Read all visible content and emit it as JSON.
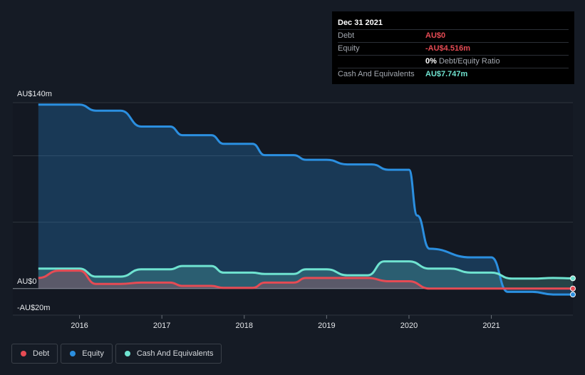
{
  "tooltip": {
    "date": "Dec 31 2021",
    "rows": [
      {
        "label": "Debt",
        "value": "AU$0"
      },
      {
        "label": "Equity",
        "value": "-AU$4.516m"
      },
      {
        "label": "",
        "value": "0%",
        "suffix": "Debt/Equity Ratio"
      },
      {
        "label": "Cash And Equivalents",
        "value": "AU$7.747m"
      }
    ]
  },
  "legend": {
    "debt": "Debt",
    "equity": "Equity",
    "cash": "Cash And Equivalents"
  },
  "colors": {
    "debt": "#e64b54",
    "equity": "#2b8fe0",
    "cash": "#6fe3d0",
    "background": "#151b25"
  },
  "chart_data": {
    "type": "line",
    "title": "",
    "xlabel": "",
    "ylabel": "",
    "currency_labels": [
      "AU$140m",
      "AU$0",
      "-AU$20m"
    ],
    "ylim": [
      -20,
      140
    ],
    "xlim": [
      2015.45,
      2021.99
    ],
    "x_ticks": [
      2016,
      2017,
      2018,
      2019,
      2020,
      2021
    ],
    "x_tick_labels": [
      "2016",
      "2017",
      "2018",
      "2019",
      "2020",
      "2021"
    ],
    "series": [
      {
        "name": "Equity",
        "key": "equity",
        "x": [
          2015.5,
          2016.0,
          2016.2,
          2016.5,
          2016.75,
          2017.1,
          2017.25,
          2017.6,
          2017.75,
          2018.1,
          2018.25,
          2018.6,
          2018.75,
          2019.0,
          2019.25,
          2019.55,
          2019.75,
          2020.0,
          2020.1,
          2020.25,
          2020.75,
          2021.0,
          2021.2,
          2021.5,
          2021.75,
          2021.99
        ],
        "values": [
          138.5,
          138.5,
          134.0,
          134.0,
          122.0,
          122.0,
          115.5,
          115.5,
          109.0,
          109.0,
          100.5,
          100.5,
          97.0,
          97.0,
          93.5,
          93.5,
          89.5,
          89.5,
          55.0,
          30.0,
          23.5,
          23.5,
          -2.5,
          -2.5,
          -4.5,
          -4.5
        ]
      },
      {
        "name": "Cash And Equivalents",
        "key": "cash",
        "x": [
          2015.5,
          2016.0,
          2016.2,
          2016.5,
          2016.75,
          2017.1,
          2017.25,
          2017.6,
          2017.75,
          2018.1,
          2018.25,
          2018.6,
          2018.75,
          2019.0,
          2019.25,
          2019.5,
          2019.7,
          2020.0,
          2020.25,
          2020.5,
          2020.75,
          2021.0,
          2021.25,
          2021.5,
          2021.75,
          2021.99
        ],
        "values": [
          15.0,
          15.0,
          9.0,
          9.0,
          14.5,
          14.5,
          17.0,
          17.0,
          12.0,
          12.0,
          11.0,
          11.0,
          14.5,
          14.5,
          10.0,
          10.0,
          20.5,
          20.5,
          15.0,
          15.0,
          12.0,
          12.0,
          7.5,
          7.5,
          8.0,
          7.7
        ]
      },
      {
        "name": "Debt",
        "key": "debt",
        "x": [
          2015.5,
          2015.75,
          2016.0,
          2016.2,
          2016.5,
          2016.75,
          2017.1,
          2017.25,
          2017.6,
          2017.75,
          2018.1,
          2018.25,
          2018.6,
          2018.75,
          2019.0,
          2019.25,
          2019.5,
          2019.75,
          2020.0,
          2020.25,
          2020.75,
          2021.0,
          2021.5,
          2021.99
        ],
        "values": [
          8.0,
          13.5,
          13.5,
          3.5,
          3.5,
          4.5,
          4.5,
          2.0,
          2.0,
          0.5,
          0.5,
          4.5,
          4.5,
          8.0,
          8.0,
          8.0,
          8.0,
          5.5,
          5.5,
          0.0,
          0.0,
          0.0,
          0.0,
          0.0
        ]
      }
    ]
  }
}
